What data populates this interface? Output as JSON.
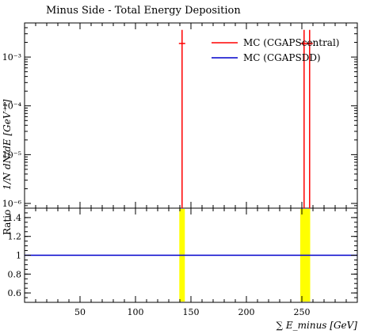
{
  "chart_data": [
    {
      "type": "line",
      "panel": "main",
      "title": "Minus Side - Total Energy Deposition",
      "ylabel": "1/N dN/dE [GeV⁻¹]",
      "xlabel": "",
      "xlim": [
        0,
        300
      ],
      "ylim": [
        8e-07,
        0.005
      ],
      "yscale": "log",
      "y_tick_labels": [
        "10⁻⁶",
        "10⁻⁵",
        "10⁻⁴",
        "10⁻³"
      ],
      "y_tick_values": [
        1e-06,
        1e-05,
        0.0001,
        0.001
      ],
      "legend_position": "top-right",
      "series": [
        {
          "name": "MC (CGAPScentral)",
          "color": "#ff0000",
          "points": [
            {
              "x": 142,
              "y": 0.0019,
              "yerr_high": 0.0036
            },
            {
              "x": 252,
              "y": 0.0019,
              "yerr_high": 0.0036
            },
            {
              "x": 257,
              "y": 0.0019,
              "yerr_high": 0.0036
            }
          ]
        },
        {
          "name": "MC (CGAPSDD)",
          "color": "#0000cc",
          "points": []
        }
      ]
    },
    {
      "type": "line",
      "panel": "ratio",
      "ylabel": "Ratio",
      "xlabel": "∑ E_minus [GeV]",
      "xlim": [
        0,
        300
      ],
      "ylim": [
        0.5,
        1.5
      ],
      "y_tick_labels": [
        "0.6",
        "0.8",
        "1",
        "1.2",
        "1.4"
      ],
      "y_tick_values": [
        0.6,
        0.8,
        1.0,
        1.2,
        1.4
      ],
      "x_tick_labels": [
        "50",
        "100",
        "150",
        "200",
        "250"
      ],
      "x_tick_values": [
        50,
        100,
        150,
        200,
        250
      ],
      "reference_line": {
        "y": 1.0,
        "color": "#0000cc"
      },
      "uncertainty_band_color": "#ffff00",
      "uncertainty_bands": [
        {
          "x_low": 139.5,
          "x_high": 144.5
        },
        {
          "x_low": 248.5,
          "x_high": 257.5
        }
      ]
    }
  ]
}
